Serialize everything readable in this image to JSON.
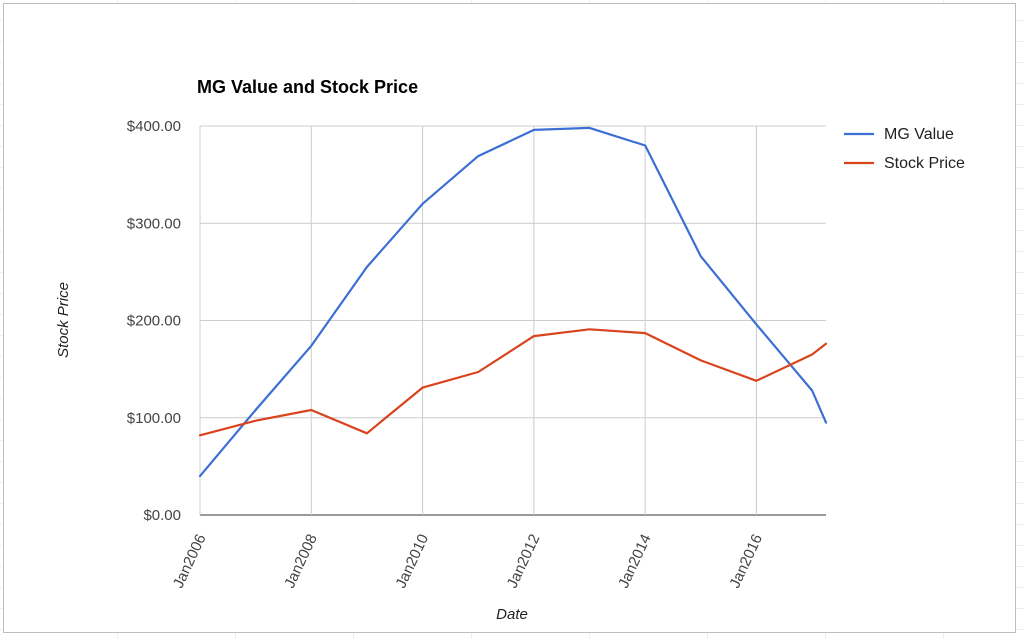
{
  "chart_data": {
    "type": "line",
    "title": "MG Value and Stock Price",
    "xlabel": "Date",
    "ylabel": "Stock Price",
    "x": [
      "2006-01",
      "2007-01",
      "2008-01",
      "2009-01",
      "2010-01",
      "2011-01",
      "2012-01",
      "2013-01",
      "2014-01",
      "2015-01",
      "2016-01",
      "2017-01",
      "2017-04"
    ],
    "x_ticks": [
      "Jan2006",
      "Jan2008",
      "Jan2010",
      "Jan2012",
      "Jan2014",
      "Jan2016"
    ],
    "x_tick_dates": [
      "2006-01",
      "2008-01",
      "2010-01",
      "2012-01",
      "2014-01",
      "2016-01"
    ],
    "xlim": [
      "2006-01",
      "2017-04"
    ],
    "ylim": [
      0,
      400
    ],
    "y_ticks": [
      "$0.00",
      "$100.00",
      "$200.00",
      "$300.00",
      "$400.00"
    ],
    "y_tick_values": [
      0,
      100,
      200,
      300,
      400
    ],
    "grid": true,
    "legend_position": "right",
    "series": [
      {
        "name": "MG Value",
        "color": "#3c6fd4",
        "values": [
          40,
          108,
          174,
          255,
          320,
          369,
          396,
          398,
          380,
          266,
          196,
          128,
          95
        ]
      },
      {
        "name": "Stock Price",
        "color": "#d9441f",
        "values": [
          82,
          97,
          108,
          84,
          131,
          147,
          184,
          191,
          187,
          159,
          138,
          165,
          176
        ]
      }
    ]
  }
}
